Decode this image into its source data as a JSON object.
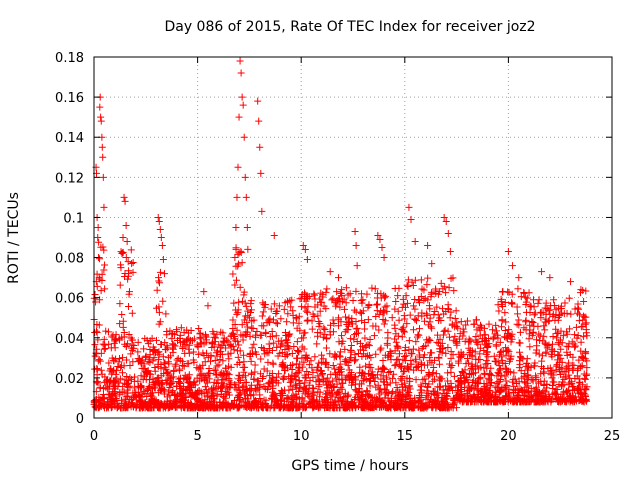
{
  "chart_data": {
    "type": "scatter",
    "title": "Day 086 of 2015, Rate Of TEC Index for receiver joz2",
    "xlabel": "GPS time / hours",
    "ylabel": "ROTI / TECUs",
    "xlim": [
      0,
      25
    ],
    "ylim": [
      0,
      0.18
    ],
    "xticks": [
      0,
      5,
      10,
      15,
      20,
      25
    ],
    "xtick_labels": [
      "0",
      "5",
      "10",
      "15",
      "20",
      "25"
    ],
    "yticks": [
      0,
      0.02,
      0.04,
      0.06,
      0.08,
      0.1,
      0.12,
      0.14,
      0.16,
      0.18
    ],
    "ytick_labels": [
      "0",
      "0.02",
      "0.04",
      "0.06",
      "0.08",
      "0.1",
      "0.12",
      "0.14",
      "0.16",
      "0.18"
    ],
    "grid": true,
    "marker": "+",
    "color": "#ff0000",
    "series": [
      {
        "name": "ROTI",
        "points": [
          [
            0.1,
            0.125
          ],
          [
            0.12,
            0.122
          ],
          [
            0.15,
            0.1
          ],
          [
            0.18,
            0.09
          ],
          [
            0.2,
            0.095
          ],
          [
            0.22,
            0.08
          ],
          [
            0.25,
            0.07
          ],
          [
            0.28,
            0.155
          ],
          [
            0.3,
            0.16
          ],
          [
            0.32,
            0.15
          ],
          [
            0.35,
            0.148
          ],
          [
            0.38,
            0.14
          ],
          [
            0.4,
            0.135
          ],
          [
            0.42,
            0.13
          ],
          [
            0.45,
            0.12
          ],
          [
            0.48,
            0.105
          ],
          [
            1.3,
            0.075
          ],
          [
            1.35,
            0.082
          ],
          [
            1.4,
            0.09
          ],
          [
            1.45,
            0.11
          ],
          [
            1.5,
            0.108
          ],
          [
            1.55,
            0.096
          ],
          [
            1.6,
            0.088
          ],
          [
            1.65,
            0.078
          ],
          [
            3.1,
            0.1
          ],
          [
            3.15,
            0.098
          ],
          [
            3.2,
            0.094
          ],
          [
            3.25,
            0.09
          ],
          [
            3.3,
            0.086
          ],
          [
            3.35,
            0.079
          ],
          [
            3.4,
            0.072
          ],
          [
            5.3,
            0.063
          ],
          [
            5.5,
            0.056
          ],
          [
            6.8,
            0.08
          ],
          [
            6.85,
            0.095
          ],
          [
            6.9,
            0.11
          ],
          [
            6.95,
            0.125
          ],
          [
            7.0,
            0.15
          ],
          [
            7.05,
            0.178
          ],
          [
            7.1,
            0.172
          ],
          [
            7.15,
            0.16
          ],
          [
            7.2,
            0.156
          ],
          [
            7.25,
            0.14
          ],
          [
            7.3,
            0.12
          ],
          [
            7.35,
            0.11
          ],
          [
            7.4,
            0.095
          ],
          [
            7.9,
            0.158
          ],
          [
            7.95,
            0.148
          ],
          [
            8.0,
            0.135
          ],
          [
            8.05,
            0.122
          ],
          [
            8.1,
            0.103
          ],
          [
            8.7,
            0.091
          ],
          [
            10.1,
            0.086
          ],
          [
            10.2,
            0.084
          ],
          [
            10.3,
            0.079
          ],
          [
            11.4,
            0.073
          ],
          [
            11.8,
            0.07
          ],
          [
            12.6,
            0.093
          ],
          [
            12.65,
            0.086
          ],
          [
            12.7,
            0.076
          ],
          [
            13.7,
            0.091
          ],
          [
            13.8,
            0.089
          ],
          [
            13.9,
            0.085
          ],
          [
            14.0,
            0.08
          ],
          [
            15.2,
            0.105
          ],
          [
            15.3,
            0.099
          ],
          [
            15.5,
            0.088
          ],
          [
            16.1,
            0.086
          ],
          [
            16.3,
            0.077
          ],
          [
            16.9,
            0.1
          ],
          [
            17.0,
            0.098
          ],
          [
            17.1,
            0.092
          ],
          [
            17.2,
            0.083
          ],
          [
            20.0,
            0.083
          ],
          [
            20.2,
            0.076
          ],
          [
            20.5,
            0.07
          ],
          [
            21.6,
            0.073
          ],
          [
            22.0,
            0.07
          ],
          [
            23.0,
            0.068
          ],
          [
            23.5,
            0.064
          ]
        ],
        "bands": [
          {
            "x_start": 0.0,
            "x_end": 0.6,
            "y_min": 0.005,
            "y_max": 0.09
          },
          {
            "x_start": 0.6,
            "x_end": 1.2,
            "y_min": 0.005,
            "y_max": 0.045
          },
          {
            "x_start": 1.2,
            "x_end": 1.9,
            "y_min": 0.005,
            "y_max": 0.085
          },
          {
            "x_start": 1.9,
            "x_end": 3.0,
            "y_min": 0.005,
            "y_max": 0.04
          },
          {
            "x_start": 3.0,
            "x_end": 3.5,
            "y_min": 0.005,
            "y_max": 0.075
          },
          {
            "x_start": 3.5,
            "x_end": 4.5,
            "y_min": 0.005,
            "y_max": 0.045
          },
          {
            "x_start": 4.5,
            "x_end": 6.7,
            "y_min": 0.005,
            "y_max": 0.045
          },
          {
            "x_start": 6.7,
            "x_end": 7.5,
            "y_min": 0.005,
            "y_max": 0.085
          },
          {
            "x_start": 7.5,
            "x_end": 9.9,
            "y_min": 0.005,
            "y_max": 0.06
          },
          {
            "x_start": 9.9,
            "x_end": 12.5,
            "y_min": 0.005,
            "y_max": 0.065
          },
          {
            "x_start": 12.5,
            "x_end": 15.0,
            "y_min": 0.005,
            "y_max": 0.065
          },
          {
            "x_start": 15.0,
            "x_end": 16.0,
            "y_min": 0.005,
            "y_max": 0.07
          },
          {
            "x_start": 16.0,
            "x_end": 17.5,
            "y_min": 0.005,
            "y_max": 0.07
          },
          {
            "x_start": 17.5,
            "x_end": 19.5,
            "y_min": 0.008,
            "y_max": 0.05
          },
          {
            "x_start": 19.5,
            "x_end": 21.0,
            "y_min": 0.008,
            "y_max": 0.065
          },
          {
            "x_start": 21.0,
            "x_end": 22.5,
            "y_min": 0.008,
            "y_max": 0.06
          },
          {
            "x_start": 22.5,
            "x_end": 23.8,
            "y_min": 0.008,
            "y_max": 0.065
          }
        ]
      }
    ]
  }
}
